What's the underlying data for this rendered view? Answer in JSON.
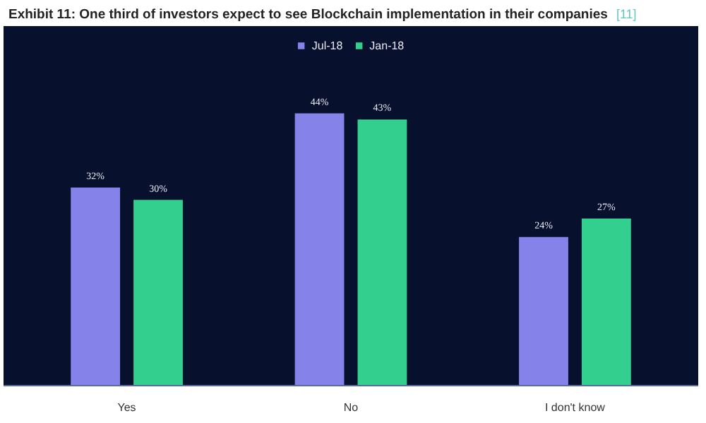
{
  "chart_data": {
    "type": "bar",
    "title": "Exhibit 11: One third of investors expect to see Blockchain implementation in their companies",
    "annotations": [
      "[11]"
    ],
    "categories": [
      "Yes",
      "No",
      "I don't know"
    ],
    "series": [
      {
        "name": "Jul-18",
        "color": "#8583ea",
        "values": [
          32,
          44,
          24
        ],
        "value_labels": [
          "32%",
          "44%",
          "24%"
        ]
      },
      {
        "name": "Jan-18",
        "color": "#32cf8e",
        "values": [
          30,
          43,
          27
        ],
        "value_labels": [
          "30%",
          "43%",
          "27%"
        ]
      }
    ],
    "legend": "top",
    "grid": false
  }
}
